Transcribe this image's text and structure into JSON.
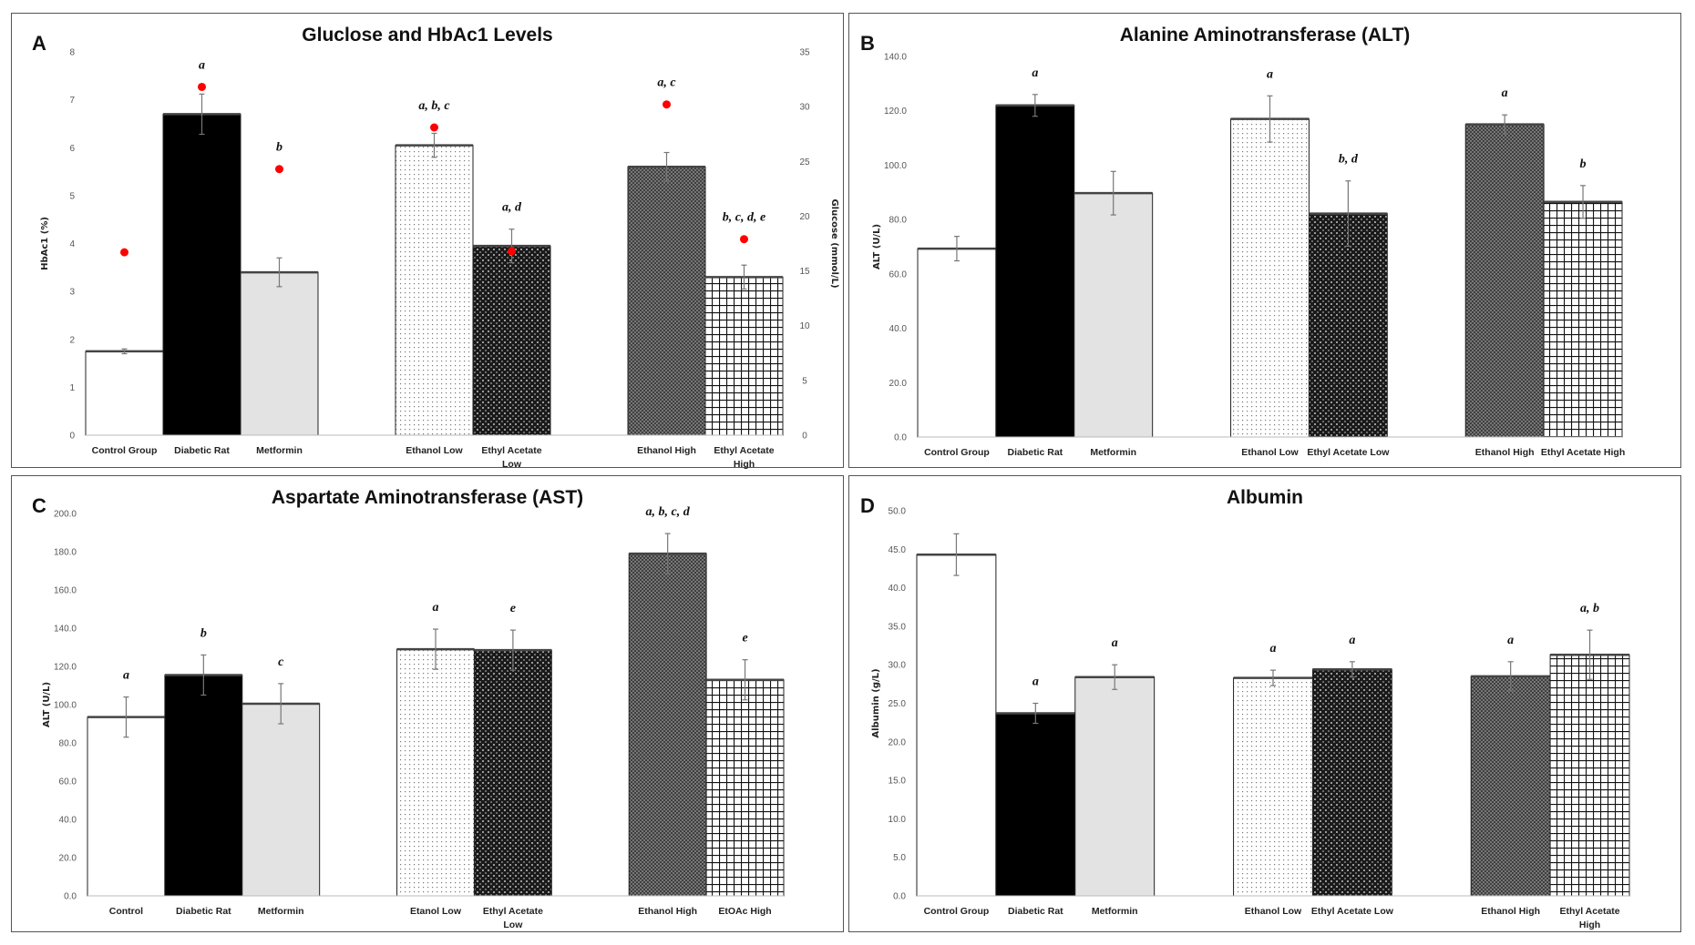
{
  "chart_data": [
    {
      "id": "A",
      "type": "bar",
      "panel_letter": "A",
      "title": "Gluclose and HbAc1 Levels",
      "ylabel": "HbAc1 (%)",
      "y2label": "Glucose (mmol/L)",
      "ylim": [
        0,
        8
      ],
      "yticks": [
        0,
        1,
        2,
        3,
        4,
        5,
        6,
        7,
        8
      ],
      "y2lim": [
        0,
        35
      ],
      "y2ticks": [
        0,
        5,
        10,
        15,
        20,
        25,
        30,
        35
      ],
      "tick_decimals": 0,
      "categories": [
        "Control Group",
        "Diabetic Rat",
        "Metformin",
        "Ethanol Low",
        "Ethyl Acetate Low",
        "Ethanol High",
        "Ethyl Acetate High"
      ],
      "values": [
        1.75,
        6.7,
        3.4,
        6.05,
        3.95,
        5.6,
        3.3
      ],
      "errors": [
        0.05,
        0.42,
        0.3,
        0.25,
        0.35,
        0.3,
        0.25
      ],
      "annotations": [
        "",
        "a",
        "b",
        "a, b, c",
        "a, d",
        "a, c",
        "b, c, d, e"
      ],
      "secondary_series": {
        "name": "Glucose",
        "axis": "right",
        "marker": "red dot",
        "color": "#ff0000",
        "values": [
          16.7,
          31.8,
          24.3,
          28.1,
          16.8,
          30.2,
          17.9
        ]
      }
    },
    {
      "id": "B",
      "type": "bar",
      "panel_letter": "B",
      "title": "Alanine Aminotransferase (ALT)",
      "ylabel": "ALT (U/L)",
      "ylim": [
        0,
        140
      ],
      "yticks": [
        0,
        20,
        40,
        60,
        80,
        100,
        120,
        140
      ],
      "tick_decimals": 1,
      "categories": [
        "Control Group",
        "Diabetic Rat",
        "Metformin",
        "Ethanol Low",
        "Ethyl Acetate Low",
        "Ethanol High",
        "Ethyl Acetate High"
      ],
      "values": [
        69.3,
        122.0,
        89.7,
        117.0,
        82.2,
        115.0,
        86.5
      ],
      "errors": [
        4.5,
        4.0,
        8.0,
        8.5,
        12.0,
        3.5,
        6.0
      ],
      "annotations": [
        "",
        "a",
        "",
        "a",
        "b, d",
        "a",
        "b"
      ]
    },
    {
      "id": "C",
      "type": "bar",
      "panel_letter": "C",
      "title": "Aspartate Aminotransferase (AST)",
      "ylabel": "ALT (U/L)",
      "ylim": [
        0,
        200
      ],
      "yticks": [
        0,
        20,
        40,
        60,
        80,
        100,
        120,
        140,
        160,
        180,
        200
      ],
      "tick_decimals": 1,
      "categories": [
        "Control",
        "Diabetic Rat",
        "Metformin",
        "Etanol Low",
        "Ethyl Acetate Low",
        "Ethanol High",
        "EtOAc High"
      ],
      "values": [
        93.5,
        115.5,
        100.5,
        129.0,
        128.5,
        179.0,
        113.0
      ],
      "errors": [
        10.5,
        10.5,
        10.5,
        10.5,
        10.5,
        10.5,
        10.5
      ],
      "annotations": [
        "a",
        "b",
        "c",
        "a",
        "e",
        "a, b, c, d",
        "e"
      ]
    },
    {
      "id": "D",
      "type": "bar",
      "panel_letter": "D",
      "title": "Albumin",
      "ylabel": "Albumin (g/L)",
      "ylim": [
        0,
        50
      ],
      "yticks": [
        0,
        5,
        10,
        15,
        20,
        25,
        30,
        35,
        40,
        45,
        50
      ],
      "tick_decimals": 1,
      "categories": [
        "Control Group",
        "Diabetic Rat",
        "Metformin",
        "Ethanol Low",
        "Ethyl Acetate Low",
        "Ethanol High",
        "Ethyl Acetate High"
      ],
      "values": [
        44.3,
        23.7,
        28.4,
        28.3,
        29.4,
        28.5,
        31.3
      ],
      "errors": [
        2.7,
        1.3,
        1.6,
        1.0,
        1.0,
        1.9,
        3.2
      ],
      "annotations": [
        "",
        "a",
        "a",
        "a",
        "a",
        "a",
        "a, b"
      ]
    }
  ]
}
